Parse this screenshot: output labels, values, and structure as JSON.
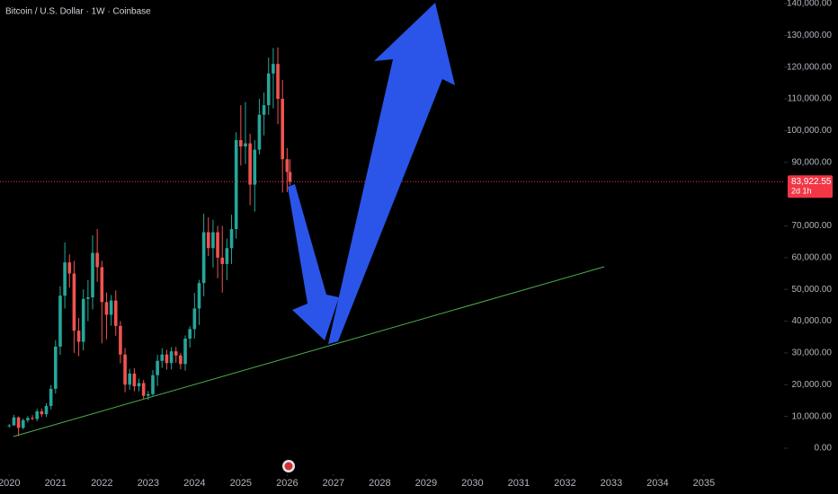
{
  "chart_data": {
    "type": "candlestick",
    "title": "Bitcoin / U.S. Dollar · 1W · Coinbase",
    "x": [
      2020.0,
      2020.1,
      2020.2,
      2020.3,
      2020.4,
      2020.5,
      2020.6,
      2020.7,
      2020.8,
      2020.9,
      2021.0,
      2021.1,
      2021.2,
      2021.3,
      2021.4,
      2021.5,
      2021.6,
      2021.7,
      2021.8,
      2021.9,
      2022.0,
      2022.1,
      2022.2,
      2022.3,
      2022.4,
      2022.5,
      2022.6,
      2022.7,
      2022.8,
      2022.9,
      2023.0,
      2023.1,
      2023.2,
      2023.3,
      2023.4,
      2023.5,
      2023.6,
      2023.7,
      2023.8,
      2023.9,
      2024.0,
      2024.1,
      2024.2,
      2024.3,
      2024.4,
      2024.5,
      2024.6,
      2024.7,
      2024.8,
      2024.9,
      2025.0,
      2025.1,
      2025.2,
      2025.3,
      2025.4,
      2025.5,
      2025.6,
      2025.7,
      2025.8,
      2025.9,
      2026.0,
      2026.06
    ],
    "open": [
      7000,
      7200,
      9700,
      6400,
      8800,
      9500,
      9200,
      11600,
      10700,
      13300,
      18700,
      32000,
      48000,
      58500,
      55000,
      37000,
      33500,
      47000,
      47500,
      61500,
      57000,
      46000,
      42000,
      46500,
      38500,
      29500,
      20000,
      23500,
      19500,
      20500,
      16500,
      17000,
      23000,
      27500,
      29500,
      26800,
      30500,
      29200,
      26500,
      34500,
      37500,
      44000,
      52000,
      68000,
      63000,
      68000,
      60000,
      58000,
      63000,
      69000,
      97000,
      95000,
      96000,
      83000,
      94000,
      105000,
      108000,
      118000,
      121000,
      110000,
      91000,
      87000
    ],
    "high": [
      7600,
      10500,
      10000,
      9400,
      10100,
      10400,
      12400,
      12500,
      14200,
      19900,
      34000,
      51000,
      64800,
      61000,
      59000,
      41000,
      50000,
      52900,
      67000,
      69000,
      59000,
      49000,
      48200,
      49700,
      40000,
      31500,
      25000,
      25200,
      21900,
      21500,
      18000,
      24600,
      29400,
      31500,
      31000,
      31800,
      31900,
      30000,
      35500,
      38400,
      48900,
      53000,
      73800,
      72700,
      71900,
      70000,
      70000,
      66000,
      73500,
      99500,
      108000,
      109000,
      99000,
      97000,
      110000,
      112000,
      123000,
      126000,
      126200,
      116000,
      94500,
      91000
    ],
    "low": [
      6500,
      7000,
      3800,
      5900,
      8100,
      8900,
      8500,
      9900,
      9800,
      12200,
      17200,
      29400,
      44000,
      50600,
      30000,
      29000,
      30800,
      40000,
      43700,
      52400,
      33000,
      34300,
      38600,
      35400,
      26700,
      17600,
      18400,
      17900,
      17900,
      15500,
      15200,
      16500,
      19600,
      25300,
      24700,
      24800,
      26900,
      24900,
      24400,
      31700,
      34500,
      38800,
      47800,
      60500,
      56900,
      53500,
      49000,
      52900,
      58000,
      66000,
      89000,
      89500,
      76500,
      74500,
      92500,
      98500,
      105000,
      107000,
      102000,
      80500,
      80600,
      82800
    ],
    "close": [
      7200,
      9700,
      6400,
      8800,
      9500,
      9200,
      11600,
      10700,
      13300,
      18700,
      32000,
      48000,
      58500,
      55000,
      37000,
      33500,
      47000,
      47500,
      61500,
      57000,
      46000,
      42000,
      46500,
      38500,
      29500,
      20000,
      23500,
      19500,
      20500,
      16500,
      17000,
      23000,
      27500,
      29500,
      26800,
      30500,
      29200,
      26500,
      34500,
      37500,
      44000,
      52000,
      68000,
      63000,
      68000,
      60000,
      58000,
      63000,
      69000,
      97000,
      95000,
      96000,
      83000,
      94000,
      105000,
      108000,
      118000,
      121000,
      110000,
      91000,
      87000,
      83922.55
    ],
    "up_color": "#26a69a",
    "down_color": "#ef5350",
    "xlim": [
      2019.8,
      2036.73
    ],
    "ylim": [
      -3000,
      140000
    ],
    "xticks": [
      2020,
      2021,
      2022,
      2023,
      2024,
      2025,
      2026,
      2027,
      2028,
      2029,
      2030,
      2031,
      2032,
      2033,
      2034,
      2035
    ],
    "yticks": [
      {
        "value": 0,
        "label": "0.00"
      },
      {
        "value": 10000,
        "label": "10,000.00"
      },
      {
        "value": 20000,
        "label": "20,000.00"
      },
      {
        "value": 30000,
        "label": "30,000.00"
      },
      {
        "value": 40000,
        "label": "40,000.00"
      },
      {
        "value": 50000,
        "label": "50,000.00"
      },
      {
        "value": 60000,
        "label": "60,000.00"
      },
      {
        "value": 70000,
        "label": "70,000.00"
      },
      {
        "value": 90000,
        "label": "90,000.00"
      },
      {
        "value": 100000,
        "label": "100,000.00"
      },
      {
        "value": 110000,
        "label": "110,000.00"
      },
      {
        "value": 120000,
        "label": "120,000.00"
      },
      {
        "value": 130000,
        "label": "130,000.00"
      },
      {
        "value": 140000,
        "label": "140,000.00"
      }
    ],
    "last_price": {
      "value": 83922.55,
      "label": "83,922.55"
    },
    "countdown": "2d 1h",
    "last_price_color": "#f23645"
  }
}
